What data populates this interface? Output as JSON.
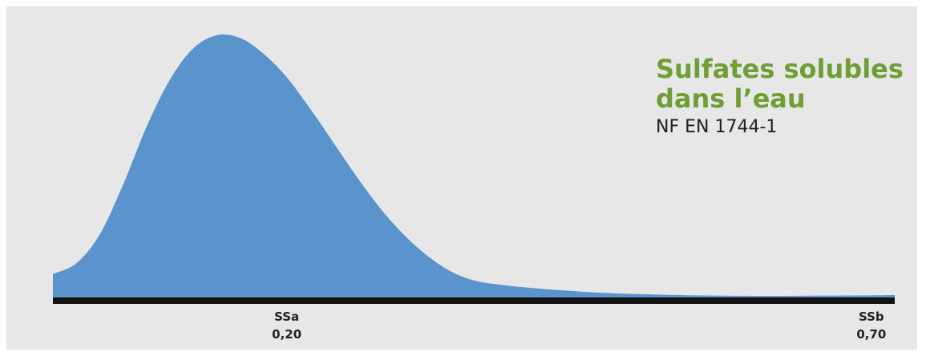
{
  "chart_data": {
    "type": "area",
    "title_lines": [
      "Sulfates solubles",
      "dans l’eau"
    ],
    "subtitle": "NF EN 1744-1",
    "xlabel": "",
    "ylabel": "",
    "xlim": [
      0.0,
      0.72
    ],
    "ylim": [
      0,
      1
    ],
    "grid": false,
    "legend": "none",
    "fill_color": "#5b93cd",
    "axis_color": "#111111",
    "tick_marks": [
      {
        "name": "SSa",
        "value": 0.2,
        "value_label": "0,20"
      },
      {
        "name": "SSb",
        "value": 0.7,
        "value_label": "0,70"
      }
    ],
    "curve": {
      "x": [
        0.0,
        0.02,
        0.04,
        0.06,
        0.08,
        0.1,
        0.12,
        0.14,
        0.16,
        0.18,
        0.2,
        0.22,
        0.24,
        0.26,
        0.28,
        0.3,
        0.32,
        0.34,
        0.36,
        0.38,
        0.4,
        0.42,
        0.44,
        0.46,
        0.48,
        0.5,
        0.55,
        0.6,
        0.65,
        0.7,
        0.72
      ],
      "y": [
        0.09,
        0.13,
        0.24,
        0.43,
        0.65,
        0.83,
        0.95,
        1.0,
        0.99,
        0.93,
        0.84,
        0.72,
        0.59,
        0.46,
        0.34,
        0.24,
        0.16,
        0.1,
        0.065,
        0.05,
        0.04,
        0.032,
        0.026,
        0.02,
        0.016,
        0.013,
        0.008,
        0.006,
        0.007,
        0.008,
        0.009
      ]
    }
  },
  "colors": {
    "panel_background": "#e7e7e7",
    "title_green": "#6e9e34"
  }
}
